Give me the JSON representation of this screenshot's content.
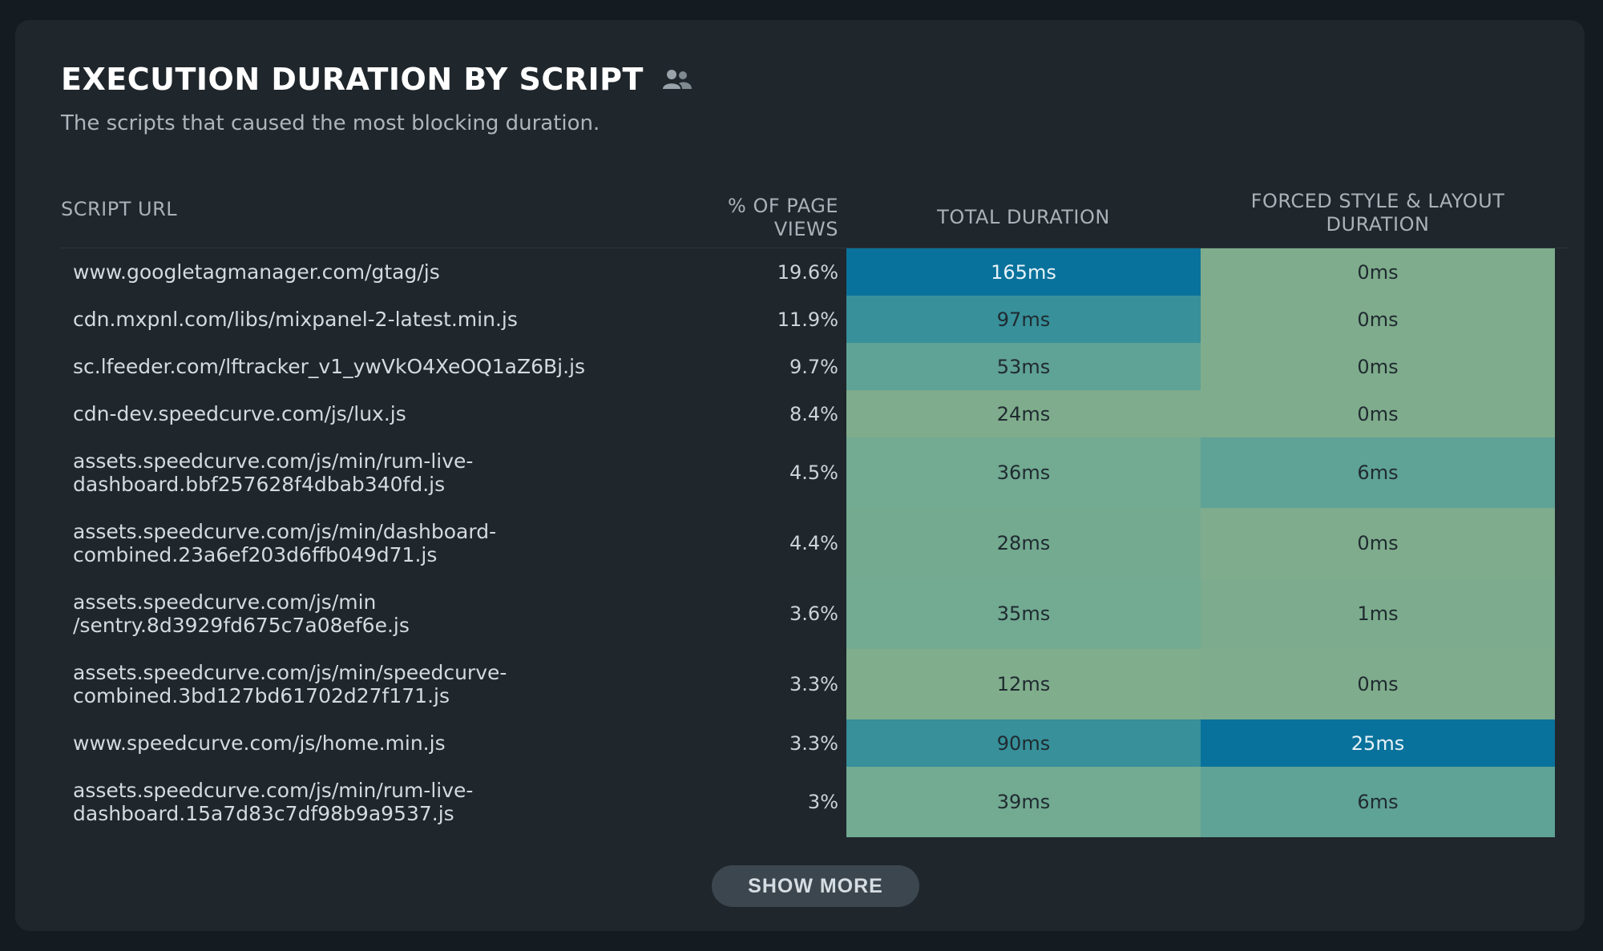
{
  "header": {
    "title": "EXECUTION DURATION BY SCRIPT",
    "subtitle": "The scripts that caused the most blocking duration.",
    "icon": "users-icon"
  },
  "table": {
    "columns": {
      "url": "SCRIPT URL",
      "pct_line1": "% OF PAGE",
      "pct_line2": "VIEWS",
      "total": "TOTAL DURATION",
      "forced_line1": "FORCED STYLE & LAYOUT",
      "forced_line2": "DURATION"
    },
    "rows": [
      {
        "url1": "www.googletagmanager.com/gtag/js",
        "url2": "",
        "pct": "19.6%",
        "total": "165ms",
        "forced": "0ms",
        "total_color": "#09729c",
        "forced_color": "#7fac8c"
      },
      {
        "url1": "cdn.mxpnl.com/libs/mixpanel-2-latest.min.js",
        "url2": "",
        "pct": "11.9%",
        "total": "97ms",
        "forced": "0ms",
        "total_color": "#37909a",
        "forced_color": "#7fac8c"
      },
      {
        "url1": "sc.lfeeder.com/lftracker_v1_ywVkO4XeOQ1aZ6Bj.js",
        "url2": "",
        "pct": "9.7%",
        "total": "53ms",
        "forced": "0ms",
        "total_color": "#5fa296",
        "forced_color": "#7fac8c"
      },
      {
        "url1": "cdn-dev.speedcurve.com/js/lux.js",
        "url2": "",
        "pct": "8.4%",
        "total": "24ms",
        "forced": "0ms",
        "total_color": "#7fac8c",
        "forced_color": "#7fac8c"
      },
      {
        "url1": "assets.speedcurve.com/js/min/rum-live-",
        "url2": "dashboard.bbf257628f4dbab340fd.js",
        "pct": "4.5%",
        "total": "36ms",
        "forced": "6ms",
        "total_color": "#72aa92",
        "forced_color": "#5fa296"
      },
      {
        "url1": "assets.speedcurve.com/js/min/dashboard-",
        "url2": "combined.23a6ef203d6ffb049d71.js",
        "pct": "4.4%",
        "total": "28ms",
        "forced": "0ms",
        "total_color": "#74aa90",
        "forced_color": "#7fac8c"
      },
      {
        "url1": "assets.speedcurve.com/js/min",
        "url2": "/sentry.8d3929fd675c7a08ef6e.js",
        "pct": "3.6%",
        "total": "35ms",
        "forced": "1ms",
        "total_color": "#72aa92",
        "forced_color": "#7cac8d"
      },
      {
        "url1": "assets.speedcurve.com/js/min/speedcurve-",
        "url2": "combined.3bd127bd61702d27f171.js",
        "pct": "3.3%",
        "total": "12ms",
        "forced": "0ms",
        "total_color": "#80ad8c",
        "forced_color": "#7fac8c"
      },
      {
        "url1": "www.speedcurve.com/js/home.min.js",
        "url2": "",
        "pct": "3.3%",
        "total": "90ms",
        "forced": "25ms",
        "total_color": "#37909a",
        "forced_color": "#09729c"
      },
      {
        "url1": "assets.speedcurve.com/js/min/rum-live-",
        "url2": "dashboard.15a7d83c7df98b9a9537.js",
        "pct": "3%",
        "total": "39ms",
        "forced": "6ms",
        "total_color": "#72aa92",
        "forced_color": "#5fa296"
      }
    ]
  },
  "footer": {
    "show_more_label": "SHOW MORE"
  }
}
